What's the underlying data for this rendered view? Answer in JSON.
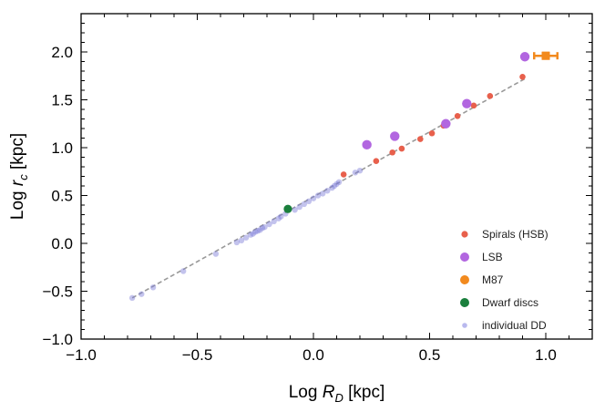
{
  "chart_data": {
    "type": "scatter",
    "xlim": [
      -1.0,
      1.2
    ],
    "ylim": [
      -1.0,
      2.4
    ],
    "x_ticks": [
      -1.0,
      -0.5,
      0.0,
      0.5,
      1.0
    ],
    "x_tick_labels": [
      "−1.0",
      "−0.5",
      "0.0",
      "0.5",
      "1.0"
    ],
    "y_ticks": [
      -1.0,
      -0.5,
      0.0,
      0.5,
      1.0,
      1.5,
      2.0
    ],
    "y_tick_labels": [
      "−1.0",
      "−0.5",
      "0.0",
      "0.5",
      "1.0",
      "1.5",
      "2.0"
    ],
    "xlabel": {
      "main": "Log ",
      "var": "R",
      "sub": "D",
      "unit": " [kpc]"
    },
    "ylabel": {
      "main": "Log ",
      "var": "r",
      "sub": "c",
      "unit": " [kpc]"
    },
    "grid": false,
    "legend_position": "bottom-right",
    "fit_line": {
      "x": [
        -0.78,
        0.91
      ],
      "y": [
        -0.57,
        1.72
      ],
      "color": "#999999",
      "style": "dashed"
    },
    "series": [
      {
        "name": "individual  DD",
        "color": "#7b7bd8",
        "marker": "small-dot",
        "x": [
          -0.78,
          -0.74,
          -0.69,
          -0.56,
          -0.42,
          -0.33,
          -0.31,
          -0.29,
          -0.27,
          -0.26,
          -0.25,
          -0.24,
          -0.23,
          -0.22,
          -0.21,
          -0.19,
          -0.17,
          -0.15,
          -0.14,
          -0.12,
          -0.08,
          -0.06,
          -0.04,
          -0.02,
          0.0,
          0.02,
          0.04,
          0.06,
          0.08,
          0.09,
          0.1,
          0.11,
          0.18,
          0.2
        ],
        "y": [
          -0.57,
          -0.53,
          -0.46,
          -0.29,
          -0.11,
          0.01,
          0.03,
          0.06,
          0.09,
          0.1,
          0.12,
          0.13,
          0.14,
          0.16,
          0.17,
          0.2,
          0.23,
          0.26,
          0.28,
          0.31,
          0.35,
          0.38,
          0.41,
          0.44,
          0.47,
          0.5,
          0.52,
          0.55,
          0.58,
          0.6,
          0.62,
          0.64,
          0.74,
          0.76
        ]
      },
      {
        "name": "Dwarf discs",
        "color": "#1a7f3c",
        "marker": "dot",
        "x": [
          -0.11
        ],
        "y": [
          0.36
        ]
      },
      {
        "name": "Spirals (HSB)",
        "color": "#e8604c",
        "marker": "dot",
        "x": [
          0.13,
          0.27,
          0.34,
          0.38,
          0.46,
          0.51,
          0.56,
          0.62,
          0.69,
          0.76,
          0.9
        ],
        "y": [
          0.72,
          0.86,
          0.95,
          0.99,
          1.09,
          1.15,
          1.23,
          1.33,
          1.44,
          1.54,
          1.74
        ]
      },
      {
        "name": "LSB",
        "color": "#b266e0",
        "marker": "large-dot",
        "x": [
          0.23,
          0.35,
          0.57,
          0.66,
          0.91
        ],
        "y": [
          1.03,
          1.12,
          1.25,
          1.46,
          1.95
        ]
      },
      {
        "name": "M87",
        "color": "#f28a1e",
        "marker": "square-errorbar",
        "x": [
          1.0
        ],
        "y": [
          1.96
        ],
        "xerr": [
          0.05
        ],
        "yerr": [
          0.03
        ]
      }
    ],
    "legend": [
      {
        "label": "Spirals (HSB)",
        "color": "#e8604c"
      },
      {
        "label": "LSB",
        "color": "#b266e0"
      },
      {
        "label": "M87",
        "color": "#f28a1e"
      },
      {
        "label": "Dwarf discs",
        "color": "#1a7f3c"
      },
      {
        "label": "individual  DD",
        "color": "#b9b9ee"
      }
    ]
  }
}
